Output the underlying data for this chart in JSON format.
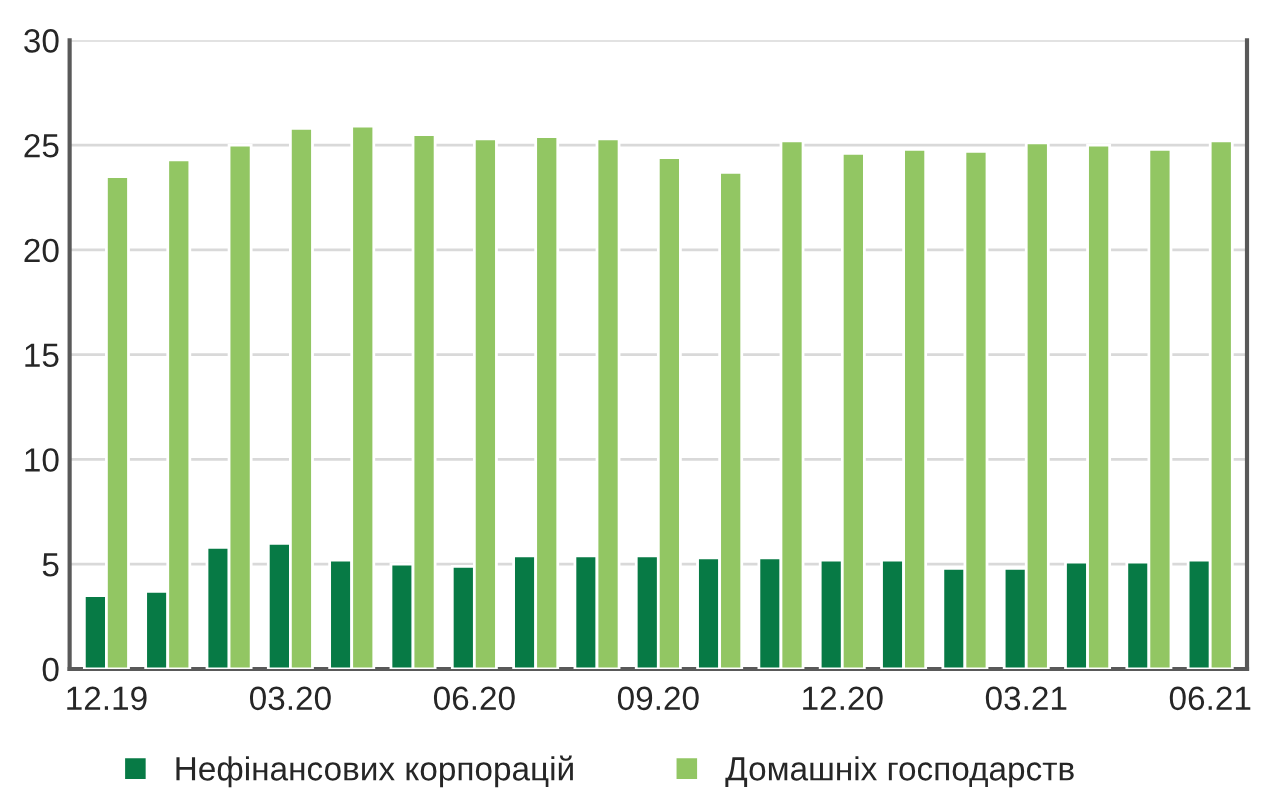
{
  "chart_data": {
    "type": "bar",
    "categories": [
      "12.19",
      null,
      null,
      "03.20",
      null,
      null,
      "06.20",
      null,
      null,
      "09.20",
      null,
      null,
      "12.20",
      null,
      null,
      "03.21",
      null,
      null,
      "06.21"
    ],
    "series": [
      {
        "name": "Нефінансових корпорацій",
        "color": "#077a45",
        "values": [
          3.5,
          3.7,
          5.8,
          6.0,
          5.2,
          5.0,
          4.9,
          5.4,
          5.4,
          5.4,
          5.3,
          5.3,
          5.2,
          5.2,
          4.8,
          4.8,
          5.1,
          5.1,
          5.2
        ]
      },
      {
        "name": "Домашніх господарств",
        "color": "#92c663",
        "values": [
          23.5,
          24.3,
          25.0,
          25.8,
          25.9,
          25.5,
          25.3,
          25.4,
          25.3,
          24.4,
          23.7,
          25.2,
          24.6,
          24.8,
          24.7,
          25.1,
          25.0,
          24.8,
          25.2
        ]
      }
    ],
    "ylim": [
      0,
      30
    ],
    "yticks": [
      0,
      5,
      10,
      15,
      20,
      25,
      30
    ],
    "grid": "y",
    "legend": "bottom"
  }
}
